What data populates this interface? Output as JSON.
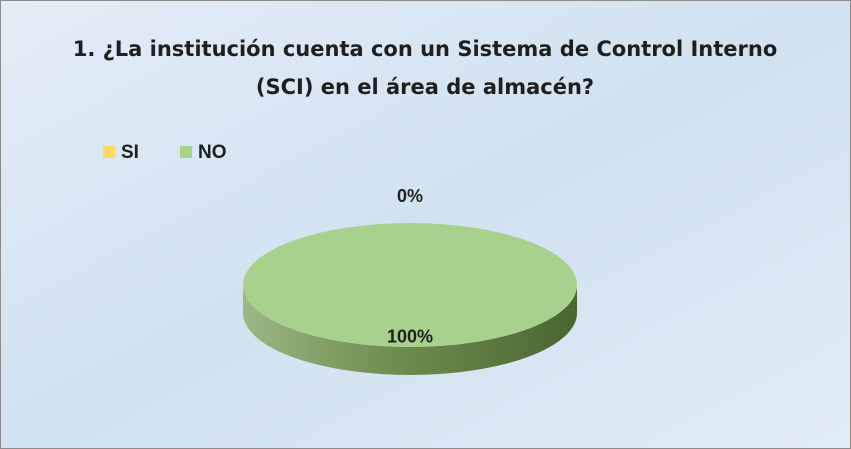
{
  "chart_data": {
    "type": "pie",
    "title": "1. ¿La institución cuenta con un Sistema de Control Interno (SCI) en el área de almacén?",
    "categories": [
      "SI",
      "NO"
    ],
    "values": [
      0,
      100
    ],
    "value_labels": [
      "0%",
      "100%"
    ],
    "colors": [
      "#ffd966",
      "#a9d18e"
    ],
    "legend": "top-left"
  }
}
